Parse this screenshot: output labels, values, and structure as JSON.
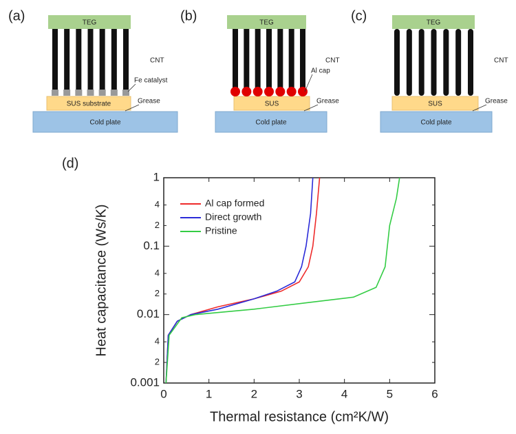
{
  "diagrams": [
    {
      "label": "(a)",
      "teg": "TEG",
      "cnt": "CNT",
      "tip": "Fe catalyst",
      "substrate": "SUS substrate",
      "grease": "Grease",
      "plate": "Cold plate"
    },
    {
      "label": "(b)",
      "teg": "TEG",
      "cnt": "CNT",
      "tip": "Al cap",
      "substrate": "SUS",
      "grease": "Grease",
      "plate": "Cold plate"
    },
    {
      "label": "(c)",
      "teg": "TEG",
      "cnt": "CNT",
      "substrate": "SUS",
      "grease": "Grease",
      "plate": "Cold plate"
    }
  ],
  "chart_data": {
    "type": "line",
    "panel_label": "(d)",
    "xlabel": "Thermal resistance (cm²K/W)",
    "ylabel": "Heat capacitance (Ws/K)",
    "xlim": [
      0,
      6
    ],
    "xticks": [
      0,
      1,
      2,
      3,
      4,
      5,
      6
    ],
    "ylim": [
      0.001,
      1
    ],
    "yscale": "log",
    "yticks": [
      0.001,
      {
        "value": 0.002,
        "label": "2"
      },
      {
        "value": 0.004,
        "label": "4"
      },
      0.01,
      {
        "value": 0.02,
        "label": "2"
      },
      {
        "value": 0.04,
        "label": "4"
      },
      0.1,
      {
        "value": 0.2,
        "label": "2"
      },
      {
        "value": 0.4,
        "label": "4"
      },
      1
    ],
    "legend": "upper left",
    "series": [
      {
        "name": "Al cap formed",
        "color": "#ee2a2a",
        "x": [
          0.05,
          0.1,
          0.3,
          0.6,
          1.2,
          2.0,
          2.6,
          3.0,
          3.2,
          3.3,
          3.38,
          3.45
        ],
        "values": [
          0.001,
          0.005,
          0.008,
          0.01,
          0.013,
          0.017,
          0.022,
          0.03,
          0.05,
          0.1,
          0.3,
          1
        ]
      },
      {
        "name": "Direct growth",
        "color": "#2a2ad8",
        "x": [
          0.05,
          0.1,
          0.3,
          0.6,
          1.2,
          2.0,
          2.5,
          2.9,
          3.05,
          3.15,
          3.25,
          3.3
        ],
        "values": [
          0.001,
          0.005,
          0.008,
          0.01,
          0.012,
          0.017,
          0.022,
          0.03,
          0.05,
          0.1,
          0.3,
          1
        ]
      },
      {
        "name": "Pristine",
        "color": "#33cc44",
        "x": [
          0.05,
          0.12,
          0.4,
          0.7,
          2.0,
          3.2,
          4.2,
          4.7,
          4.9,
          4.95,
          5.0,
          5.15,
          5.22
        ],
        "values": [
          0.001,
          0.005,
          0.009,
          0.01,
          0.012,
          0.015,
          0.018,
          0.025,
          0.05,
          0.1,
          0.2,
          0.5,
          1
        ]
      }
    ]
  }
}
